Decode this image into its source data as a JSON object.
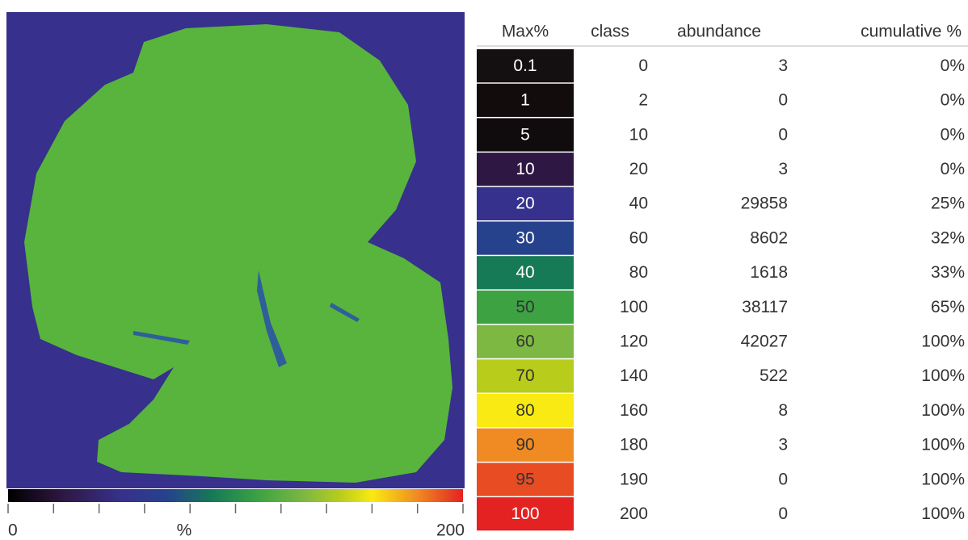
{
  "colorbar": {
    "min_label": "0",
    "unit_label": "%",
    "max_label": "200"
  },
  "table": {
    "headers": [
      "Max%",
      "class",
      "abundance",
      "cumulative %"
    ],
    "rows": [
      {
        "max": "0.1",
        "class": "0",
        "abundance": "3",
        "cumulative": "0%",
        "color": "#141011"
      },
      {
        "max": "1",
        "class": "2",
        "abundance": "0",
        "cumulative": "0%",
        "color": "#120d0c"
      },
      {
        "max": "5",
        "class": "10",
        "abundance": "0",
        "cumulative": "0%",
        "color": "#100c0d"
      },
      {
        "max": "10",
        "class": "20",
        "abundance": "3",
        "cumulative": "0%",
        "color": "#2e1742"
      },
      {
        "max": "20",
        "class": "40",
        "abundance": "29858",
        "cumulative": "25%",
        "color": "#36318c"
      },
      {
        "max": "30",
        "class": "60",
        "abundance": "8602",
        "cumulative": "32%",
        "color": "#26428c"
      },
      {
        "max": "40",
        "class": "80",
        "abundance": "1618",
        "cumulative": "33%",
        "color": "#167a57"
      },
      {
        "max": "50",
        "class": "100",
        "abundance": "38117",
        "cumulative": "65%",
        "color": "#3ca242"
      },
      {
        "max": "60",
        "class": "120",
        "abundance": "42027",
        "cumulative": "100%",
        "color": "#7cb842"
      },
      {
        "max": "70",
        "class": "140",
        "abundance": "522",
        "cumulative": "100%",
        "color": "#b8cc1c"
      },
      {
        "max": "80",
        "class": "160",
        "abundance": "8",
        "cumulative": "100%",
        "color": "#f8ea12"
      },
      {
        "max": "90",
        "class": "180",
        "abundance": "3",
        "cumulative": "100%",
        "color": "#f08a22"
      },
      {
        "max": "95",
        "class": "190",
        "abundance": "0",
        "cumulative": "100%",
        "color": "#e84c22"
      },
      {
        "max": "100",
        "class": "200",
        "abundance": "0",
        "cumulative": "100%",
        "color": "#e42222"
      }
    ]
  }
}
